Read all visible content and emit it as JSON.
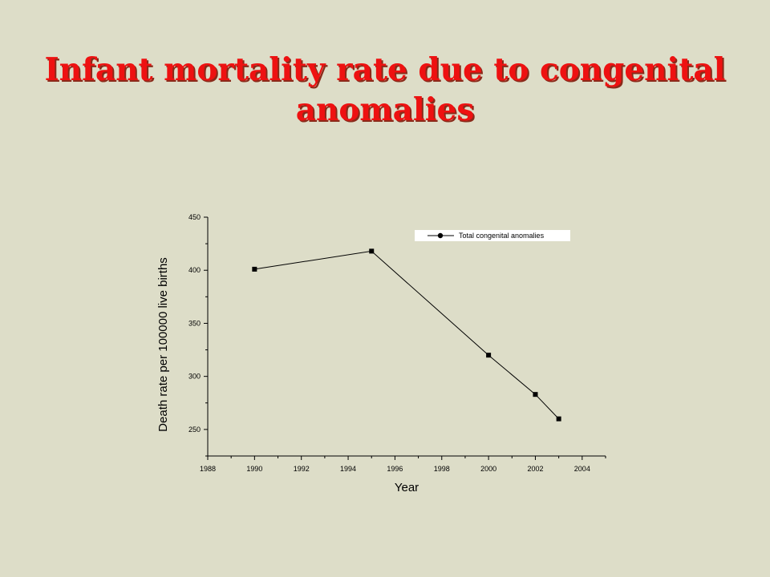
{
  "slide": {
    "title": "Infant mortality rate due to congenital anomalies"
  },
  "colors": {
    "background": "#ddddc8",
    "title": "#ee1111",
    "chart_background": "#ddddc8",
    "series": "#000000"
  },
  "chart_data": {
    "type": "line",
    "title": "",
    "xlabel": "Year",
    "ylabel": "Death rate per 100000 live births",
    "xlim": [
      1988,
      2005
    ],
    "ylim": [
      225,
      450
    ],
    "x_ticks": [
      1988,
      1990,
      1992,
      1994,
      1996,
      1998,
      2000,
      2002,
      2004
    ],
    "y_ticks": [
      250,
      300,
      350,
      400,
      450
    ],
    "grid": false,
    "legend_position": "top-right",
    "series": [
      {
        "name": "Total congenital anomalies",
        "marker": "square",
        "x": [
          1990,
          1995,
          2000,
          2002,
          2003
        ],
        "y": [
          401,
          418,
          320,
          283,
          260
        ]
      }
    ]
  }
}
